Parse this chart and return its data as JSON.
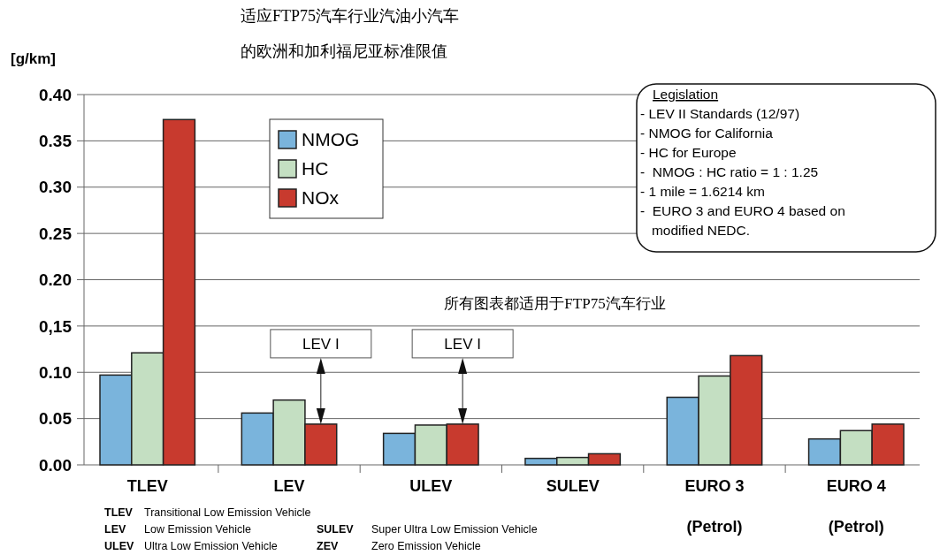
{
  "chart_data": {
    "type": "bar",
    "title": "适应FTP75汽车行业汽油小汽车",
    "subtitle": "的欧洲和加利福尼亚标准限值",
    "ylabel": "[g/km]",
    "categories": [
      "TLEV",
      "LEV",
      "ULEV",
      "SULEV",
      "EURO 3\n(Petrol)",
      "EURO 4\n(Petrol)"
    ],
    "series": [
      {
        "name": "NMOG",
        "color": "#7ab4dc",
        "values": [
          0.097,
          0.056,
          0.034,
          0.007,
          0.073,
          0.028
        ]
      },
      {
        "name": "HC",
        "color": "#c4dfc2",
        "values": [
          0.121,
          0.07,
          0.043,
          0.008,
          0.096,
          0.037
        ]
      },
      {
        "name": "NOx",
        "color": "#c83a2e",
        "values": [
          0.373,
          0.044,
          0.044,
          0.012,
          0.118,
          0.044
        ]
      }
    ],
    "ylim": [
      0,
      0.4
    ],
    "yticks": [
      {
        "value": 0,
        "label": "0.00"
      },
      {
        "value": 0.05,
        "label": "0.05"
      },
      {
        "value": 0.1,
        "label": "0.10"
      },
      {
        "value": 0.15,
        "label": "0,15"
      },
      {
        "value": 0.2,
        "label": "0.20"
      },
      {
        "value": 0.25,
        "label": "0.25"
      },
      {
        "value": 0.3,
        "label": "0.30"
      },
      {
        "value": 0.35,
        "label": "0.35"
      },
      {
        "value": 0.4,
        "label": "0.40"
      }
    ],
    "grid": "y",
    "legend": "top left",
    "annotations": [
      "所有图表都适用于FTP75汽车行业",
      "LEV I",
      "LEV I",
      "Legislation\n- LEV II Standards (12/97)\n- NMOG for California\n- HC for Europe\n-  NMOG : HC ratio = 1 : 1.25\n- 1 mile = 1.6214 km\n-  EURO 3 and EURO 4 based on\n   modified NEDC.",
      "TLEV\tTransitional Low Emission Vehicle\nLEV\tLow Emission Vehicle\tSULEV\tSuper Ultra Low Emission Vehicle\nULEV\tUltra Low Emission Vehicle\tZEV\tZero Emission Vehicle"
    ]
  }
}
